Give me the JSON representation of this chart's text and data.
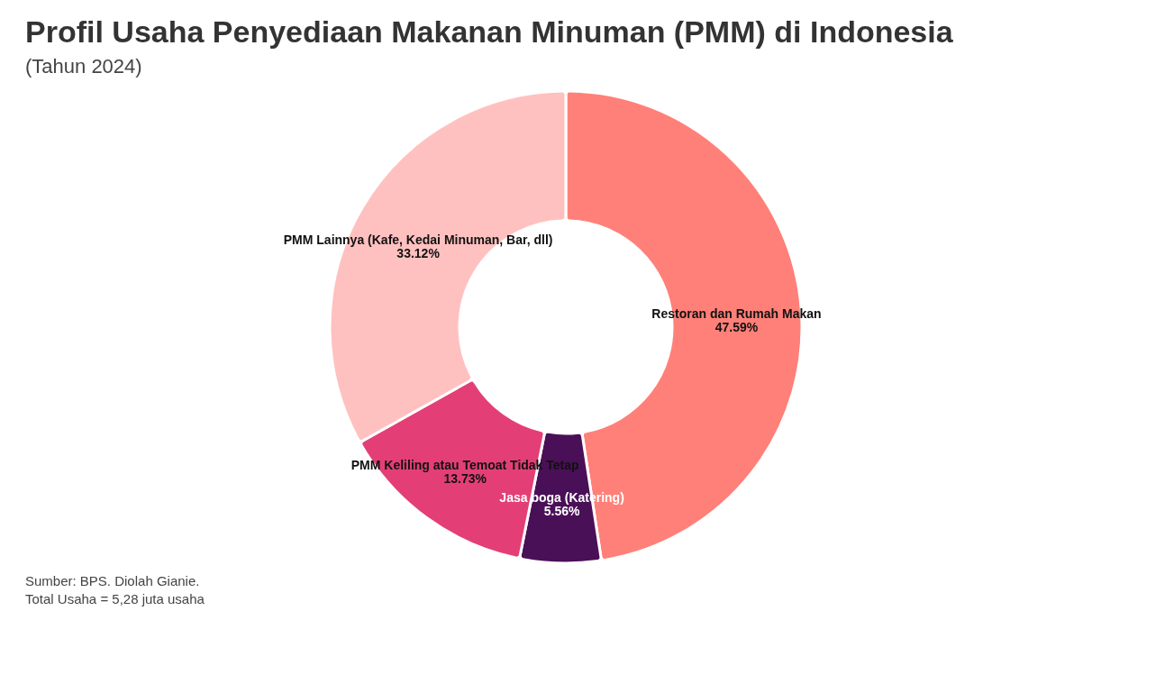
{
  "chart_data": {
    "type": "donut",
    "title": "Profil Usaha Penyediaan Makanan Minuman (PMM) di Indonesia",
    "subtitle": "(Tahun 2024)",
    "categories": [
      "Restoran dan Rumah Makan",
      "Jasa boga (Katering)",
      "PMM Keliling atau Temoat Tidak Tetap",
      "PMM Lainnya (Kafe, Kedai Minuman, Bar, dll)"
    ],
    "values": [
      47.59,
      5.56,
      13.73,
      33.12
    ],
    "value_labels": [
      "47.59%",
      "5.56%",
      "13.73%",
      "33.12%"
    ],
    "colors": [
      "#ff8078",
      "#4a1057",
      "#e33f76",
      "#ffc1c0"
    ],
    "annotations": [
      "Sumber: BPS. Diolah Gianie.",
      "Total Usaha = 5,28 juta usaha"
    ]
  }
}
